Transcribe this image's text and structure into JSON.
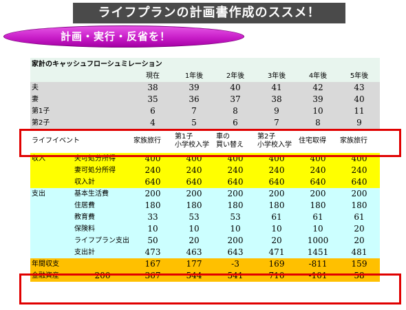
{
  "banner": {
    "title": "ライフプランの計画書作成のススメ！"
  },
  "subtitle": {
    "text": "計画・実行・反省を！"
  },
  "table": {
    "title": "家計のキャッシュフローシュミレーション",
    "headers": [
      "現在",
      "1年後",
      "2年後",
      "3年後",
      "4年後",
      "5年後"
    ],
    "ages": [
      {
        "label": "夫",
        "values": [
          "38",
          "39",
          "40",
          "41",
          "42",
          "43"
        ]
      },
      {
        "label": "妻",
        "values": [
          "35",
          "36",
          "37",
          "38",
          "39",
          "40"
        ]
      },
      {
        "label": "第1子",
        "values": [
          "6",
          "7",
          "8",
          "9",
          "10",
          "11"
        ]
      },
      {
        "label": "第2子",
        "values": [
          "4",
          "5",
          "6",
          "7",
          "8",
          "9"
        ]
      }
    ],
    "events": {
      "label": "ライフイベント",
      "values": [
        "家族旅行",
        "第1子\n小学校入学",
        "車の\n買い替え",
        "第2子\n小学校入学",
        "住宅取得",
        "家族旅行"
      ]
    },
    "income": {
      "group": "収入",
      "rows": [
        {
          "label": "夫可処分所得",
          "values": [
            "400",
            "400",
            "400",
            "400",
            "400",
            "400"
          ]
        },
        {
          "label": "妻可処分所得",
          "values": [
            "240",
            "240",
            "240",
            "240",
            "240",
            "240"
          ]
        },
        {
          "label": "収入計",
          "values": [
            "640",
            "640",
            "640",
            "640",
            "640",
            "640"
          ]
        }
      ]
    },
    "expenses": {
      "group": "支出",
      "rows": [
        {
          "label": "基本生活費",
          "values": [
            "200",
            "200",
            "200",
            "200",
            "200",
            "200"
          ]
        },
        {
          "label": "住居費",
          "values": [
            "180",
            "180",
            "180",
            "180",
            "180",
            "180"
          ]
        },
        {
          "label": "教育費",
          "values": [
            "33",
            "53",
            "53",
            "61",
            "61",
            "61"
          ]
        },
        {
          "label": "保険料",
          "values": [
            "10",
            "10",
            "10",
            "10",
            "10",
            "20"
          ]
        },
        {
          "label": "ライフプラン支出",
          "values": [
            "50",
            "20",
            "200",
            "20",
            "1000",
            "20"
          ]
        },
        {
          "label": "支出計",
          "values": [
            "473",
            "463",
            "643",
            "471",
            "1451",
            "481"
          ]
        }
      ]
    },
    "balance": {
      "label": "年間収支",
      "values": [
        "167",
        "177",
        "-3",
        "169",
        "-811",
        "159"
      ]
    },
    "assets": {
      "label": "金融資産",
      "initial": "200",
      "values": [
        "367",
        "544",
        "541",
        "710",
        "-101",
        "58"
      ]
    }
  }
}
